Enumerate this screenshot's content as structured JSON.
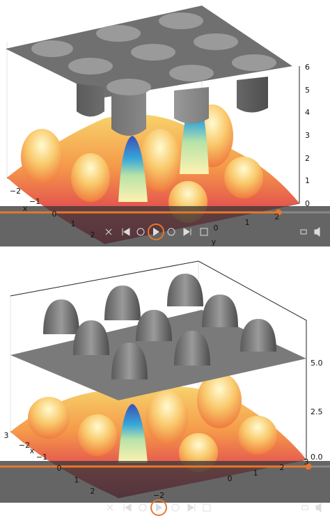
{
  "panels": [
    {
      "z_ticks": [
        "0",
        "1",
        "2",
        "3",
        "4",
        "5",
        "6"
      ],
      "x_ticks": [
        "−2",
        "−1",
        "0",
        "1",
        "2"
      ],
      "x_label": "x",
      "y_ticks": [
        "0",
        "1",
        "2"
      ],
      "y_label": "y"
    },
    {
      "z_ticks": [
        "0.0",
        "2.5",
        "5.0"
      ],
      "x_ticks": [
        "3",
        "−2",
        "−1",
        "0",
        "1",
        "2"
      ],
      "x_label": "x",
      "y_ticks": [
        "−2",
        "0",
        "1",
        "2",
        "3"
      ]
    }
  ]
}
